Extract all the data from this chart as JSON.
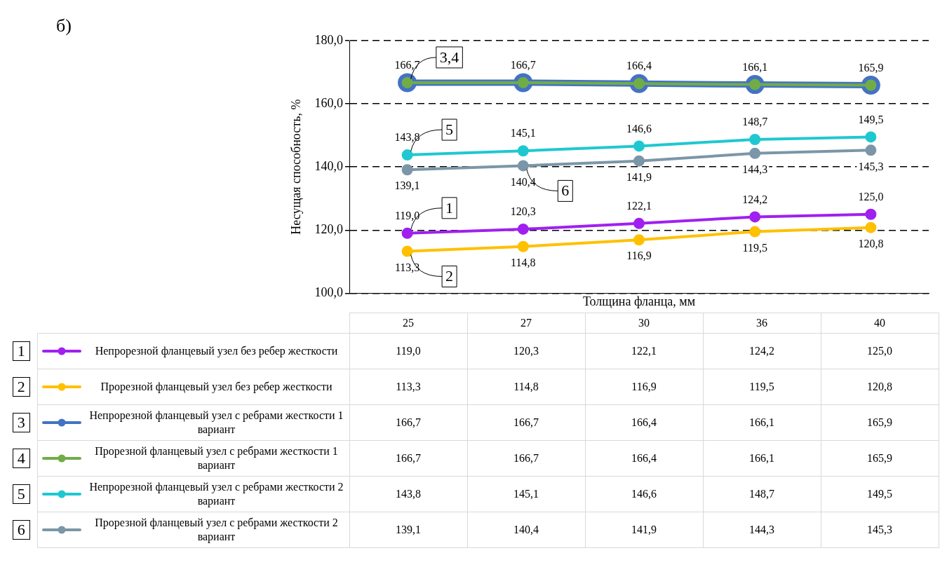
{
  "chart_data": {
    "type": "line",
    "xlabel": "Толщина фланца, мм",
    "ylabel": "Несущая способность, %",
    "categories": [
      "25",
      "27",
      "30",
      "36",
      "40"
    ],
    "ylim": [
      100,
      180
    ],
    "yticks": [
      {
        "value": 100,
        "label": "100,0"
      },
      {
        "value": 120,
        "label": "120,0"
      },
      {
        "value": 140,
        "label": "140,0"
      },
      {
        "value": 160,
        "label": "160,0"
      },
      {
        "value": 180,
        "label": "180,0"
      }
    ],
    "grid": "y",
    "legend": "bottom",
    "marker": "circle",
    "line_style": "solid",
    "series": [
      {
        "name": "Непрорезной фланцевый узел без ребер жесткости",
        "color": "#a020f0",
        "values": [
          119.0,
          120.3,
          122.1,
          124.2,
          125.0
        ],
        "value_labels": [
          "119,0",
          "120,3",
          "122,1",
          "124,2",
          "125,0"
        ]
      },
      {
        "name": "Прорезной фланцевый узел без ребер жесткости",
        "color": "#ffc000",
        "values": [
          113.3,
          114.8,
          116.9,
          119.5,
          120.8
        ],
        "value_labels": [
          "113,3",
          "114,8",
          "116,9",
          "119,5",
          "120,8"
        ]
      },
      {
        "name": "Непрорезной фланцевый узел с ребрами жесткости 1 вариант",
        "color": "#4472c4",
        "values": [
          166.7,
          166.7,
          166.4,
          166.1,
          165.9
        ],
        "value_labels": [
          "166,7",
          "166,7",
          "166,4",
          "166,1",
          "165,9"
        ]
      },
      {
        "name": "Прорезной фланцевый узел с ребрами жесткости 1 вариант",
        "color": "#70ad47",
        "values": [
          166.7,
          166.7,
          166.4,
          166.1,
          165.9
        ],
        "value_labels": [
          "166,7",
          "166,7",
          "166,4",
          "166,1",
          "165,9"
        ]
      },
      {
        "name": "Непрорезной фланцевый узел с ребрами жесткости 2 вариант",
        "color": "#1fc8d0",
        "values": [
          143.8,
          145.1,
          146.6,
          148.7,
          149.5
        ],
        "value_labels": [
          "143,8",
          "145,1",
          "146,6",
          "148,7",
          "149,5"
        ]
      },
      {
        "name": "Прорезной фланцевый узел с ребрами жесткости 2 вариант",
        "color": "#7b96a8",
        "values": [
          139.1,
          140.4,
          141.9,
          144.3,
          145.3
        ],
        "value_labels": [
          "139,1",
          "140,4",
          "141,9",
          "144,3",
          "145,3"
        ]
      }
    ],
    "annotations": [
      "б)",
      "1",
      "2",
      "3",
      "4",
      "5",
      "6",
      {
        "text": "1",
        "x": "25",
        "y": 119.0
      },
      {
        "text": "2",
        "x": "25",
        "y": 113.3
      },
      {
        "text": "3,4",
        "x": "25",
        "y": 166.7
      },
      {
        "text": "5",
        "x": "25",
        "y": 143.8
      },
      {
        "text": "6",
        "x": "27",
        "y": 140.4
      }
    ]
  }
}
